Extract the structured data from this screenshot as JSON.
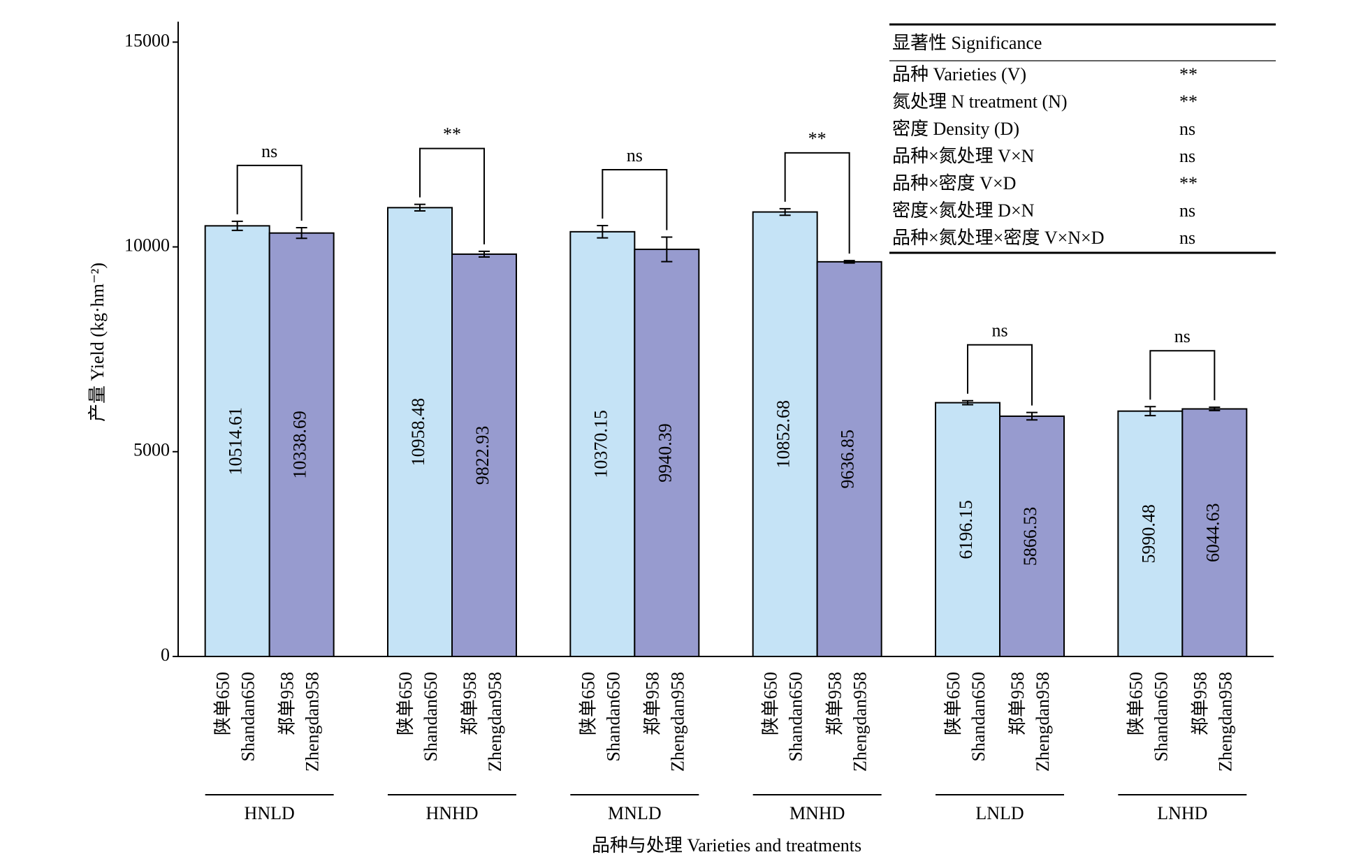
{
  "chart_data": {
    "type": "grouped_bar",
    "y_label": "产量 Yield (kg·hm⁻²)",
    "x_label": "品种与处理 Varieties and treatments",
    "categories": [
      "HNLD",
      "HNHD",
      "MNLD",
      "MNHD",
      "LNLD",
      "LNHD"
    ],
    "series": [
      {
        "name": "陕单650",
        "name_en": "Shandan650",
        "color": "#c5e3f6",
        "values": [
          10514.61,
          10958.48,
          10370.15,
          10852.68,
          6196.15,
          5990.48
        ],
        "errors": [
          110,
          80,
          150,
          80,
          50,
          110
        ]
      },
      {
        "name": "郑单958",
        "name_en": "Zhengdan958",
        "color": "#979bcf",
        "values": [
          10338.69,
          9822.93,
          9940.39,
          9636.85,
          5866.53,
          6044.63
        ],
        "errors": [
          130,
          70,
          300,
          30,
          90,
          40
        ]
      }
    ],
    "comparisons": [
      "ns",
      "**",
      "ns",
      "**",
      "ns",
      "ns"
    ],
    "ylim": [
      0,
      15500
    ],
    "yticks": [
      0,
      5000,
      10000,
      15000
    ],
    "significance": {
      "title": "显著性 Significance",
      "rows": [
        [
          "品种 Varieties (V)",
          "**"
        ],
        [
          "氮处理 N treatment (N)",
          "**"
        ],
        [
          "密度 Density (D)",
          "ns"
        ],
        [
          "品种×氮处理 V×N",
          "ns"
        ],
        [
          "品种×密度 V×D",
          "**"
        ],
        [
          "密度×氮处理 D×N",
          "ns"
        ],
        [
          "品种×氮处理×密度 V×N×D",
          "ns"
        ]
      ]
    }
  }
}
